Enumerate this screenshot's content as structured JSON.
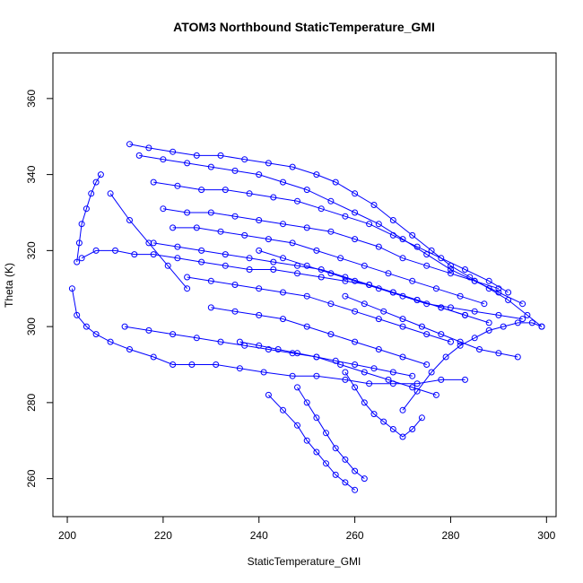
{
  "chart_data": {
    "type": "scatter",
    "title": "ATOM3 Northbound StaticTemperature_GMI",
    "xlabel": "StaticTemperature_GMI",
    "ylabel": "Theta (K)",
    "xlim": [
      197,
      302
    ],
    "ylim": [
      250,
      372
    ],
    "x_ticks": [
      200,
      220,
      240,
      260,
      280,
      300
    ],
    "y_ticks": [
      260,
      280,
      300,
      320,
      340,
      360
    ],
    "grid": false,
    "legend": "none",
    "style": "points connected by lines, open circles",
    "color": "#0000ff",
    "series": [
      {
        "x": [
          201,
          202,
          204,
          206,
          209,
          213,
          218,
          222,
          226,
          231,
          236,
          241,
          247,
          252,
          258,
          263,
          268,
          273,
          278,
          283
        ],
        "y": [
          310,
          303,
          300,
          298,
          296,
          294,
          292,
          290,
          290,
          290,
          289,
          288,
          287,
          287,
          286,
          285,
          285,
          285,
          286,
          286
        ]
      },
      {
        "x": [
          202,
          202.5,
          203,
          204,
          205,
          206,
          207
        ],
        "y": [
          317,
          322,
          327,
          331,
          335,
          338,
          340
        ]
      },
      {
        "x": [
          203,
          206,
          210,
          214,
          218,
          223,
          228,
          233,
          238,
          243,
          248,
          253,
          258,
          263,
          268,
          273,
          278,
          283,
          288
        ],
        "y": [
          318,
          320,
          320,
          319,
          319,
          318,
          317,
          316,
          315,
          315,
          314,
          313,
          312,
          311,
          309,
          307,
          305,
          303,
          301
        ]
      },
      {
        "x": [
          213,
          217,
          222,
          227,
          232,
          237,
          242,
          247,
          252,
          256,
          260,
          264,
          268,
          272,
          276,
          280,
          284,
          288,
          292,
          296,
          299
        ],
        "y": [
          348,
          347,
          346,
          345,
          345,
          344,
          343,
          342,
          340,
          338,
          335,
          332,
          328,
          324,
          320,
          316,
          313,
          310,
          307,
          303,
          300
        ]
      },
      {
        "x": [
          215,
          220,
          225,
          230,
          235,
          240,
          245,
          250,
          255,
          260,
          265,
          270,
          275,
          280,
          285,
          290,
          295
        ],
        "y": [
          345,
          344,
          343,
          342,
          341,
          340,
          338,
          336,
          333,
          330,
          327,
          323,
          319,
          315,
          312,
          309,
          306
        ]
      },
      {
        "x": [
          218,
          223,
          228,
          233,
          238,
          243,
          248,
          253,
          258,
          263,
          268,
          273,
          278,
          283,
          288,
          292
        ],
        "y": [
          338,
          337,
          336,
          336,
          335,
          334,
          333,
          331,
          329,
          327,
          324,
          321,
          318,
          315,
          312,
          309
        ]
      },
      {
        "x": [
          220,
          225,
          230,
          235,
          240,
          245,
          250,
          255,
          260,
          265,
          270,
          275,
          280,
          285,
          290
        ],
        "y": [
          331,
          330,
          330,
          329,
          328,
          327,
          326,
          325,
          323,
          321,
          318,
          316,
          314,
          312,
          310
        ]
      },
      {
        "x": [
          222,
          227,
          232,
          237,
          242,
          247,
          252,
          257,
          262,
          267,
          272,
          277,
          282,
          287
        ],
        "y": [
          326,
          326,
          325,
          324,
          323,
          322,
          320,
          318,
          316,
          314,
          312,
          310,
          308,
          306
        ]
      },
      {
        "x": [
          218,
          223,
          228,
          233,
          238,
          243,
          248,
          253,
          258,
          263,
          268,
          273,
          278,
          283
        ],
        "y": [
          322,
          321,
          320,
          319,
          318,
          317,
          316,
          315,
          313,
          311,
          309,
          307,
          305,
          303
        ]
      },
      {
        "x": [
          225,
          230,
          235,
          240,
          245,
          250,
          255,
          260,
          265,
          270,
          275,
          280
        ],
        "y": [
          313,
          312,
          311,
          310,
          309,
          308,
          306,
          304,
          302,
          300,
          298,
          296
        ]
      },
      {
        "x": [
          230,
          235,
          240,
          245,
          250,
          255,
          260,
          265,
          270,
          275
        ],
        "y": [
          305,
          304,
          303,
          302,
          300,
          298,
          296,
          294,
          292,
          290
        ]
      },
      {
        "x": [
          236,
          240,
          244,
          248,
          252,
          256,
          260,
          264,
          268,
          272
        ],
        "y": [
          296,
          295,
          294,
          293,
          292,
          291,
          290,
          289,
          288,
          287
        ]
      },
      {
        "x": [
          242,
          245,
          248,
          250,
          252,
          254,
          256,
          258,
          260
        ],
        "y": [
          282,
          278,
          274,
          270,
          267,
          264,
          261,
          259,
          257
        ]
      },
      {
        "x": [
          248,
          250,
          252,
          254,
          256,
          258,
          260,
          262
        ],
        "y": [
          284,
          280,
          276,
          272,
          268,
          265,
          262,
          260
        ]
      },
      {
        "x": [
          258,
          260,
          262,
          264,
          266,
          268,
          270,
          272,
          274
        ],
        "y": [
          288,
          284,
          280,
          277,
          275,
          273,
          271,
          273,
          276
        ]
      },
      {
        "x": [
          270,
          273,
          276,
          279,
          282,
          285,
          288,
          291,
          294,
          297,
          299
        ],
        "y": [
          278,
          283,
          288,
          292,
          295,
          297,
          299,
          300,
          301,
          301,
          300
        ]
      },
      {
        "x": [
          212,
          217,
          222,
          227,
          232,
          237,
          242,
          247,
          252,
          257,
          262,
          267,
          272,
          277
        ],
        "y": [
          300,
          299,
          298,
          297,
          296,
          295,
          294,
          293,
          292,
          290,
          288,
          286,
          284,
          282
        ]
      },
      {
        "x": [
          209,
          213,
          217,
          221,
          225
        ],
        "y": [
          335,
          328,
          322,
          316,
          310
        ]
      },
      {
        "x": [
          240,
          245,
          250,
          255,
          260,
          265,
          270,
          275,
          280,
          285,
          290,
          295
        ],
        "y": [
          320,
          318,
          316,
          314,
          312,
          310,
          308,
          306,
          305,
          304,
          303,
          302
        ]
      },
      {
        "x": [
          258,
          262,
          266,
          270,
          274,
          278,
          282,
          286,
          290,
          294
        ],
        "y": [
          308,
          306,
          304,
          302,
          300,
          298,
          296,
          294,
          293,
          292
        ]
      }
    ]
  }
}
